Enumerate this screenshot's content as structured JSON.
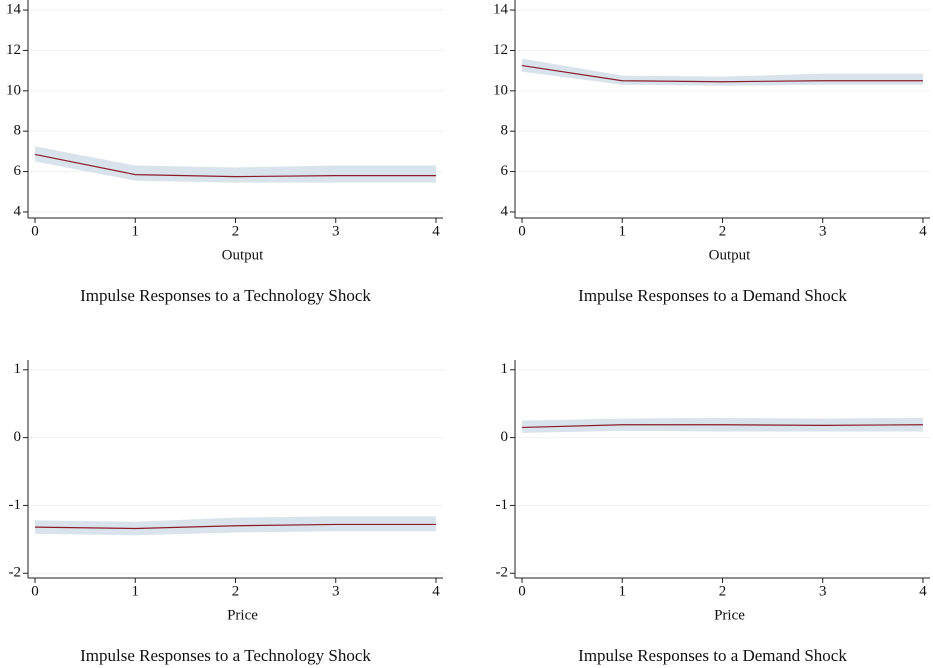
{
  "chart_data": [
    {
      "type": "line",
      "title": "Impulse Responses to a Technology Shock",
      "x_label": "Output",
      "x": [
        0,
        1,
        2,
        3,
        4
      ],
      "xlim": [
        -0.07,
        4.07
      ],
      "xticks": [
        0,
        1,
        2,
        3,
        4
      ],
      "ylim": [
        3.7,
        14.35
      ],
      "yticks": [
        4,
        6,
        8,
        10,
        12,
        14
      ],
      "grid": true,
      "series": [
        {
          "color": "#8c1c2c",
          "band_color": "#d9e3eb",
          "values": [
            6.85,
            5.85,
            5.75,
            5.8,
            5.8
          ],
          "lower": [
            6.5,
            5.55,
            5.45,
            5.45,
            5.45
          ],
          "upper": [
            7.25,
            6.3,
            6.2,
            6.3,
            6.3
          ]
        }
      ]
    },
    {
      "type": "line",
      "title": "Impulse Responses to a Demand Shock",
      "x_label": "Output",
      "x": [
        0,
        1,
        2,
        3,
        4
      ],
      "xlim": [
        -0.07,
        4.07
      ],
      "xticks": [
        0,
        1,
        2,
        3,
        4
      ],
      "ylim": [
        3.7,
        14.35
      ],
      "yticks": [
        4,
        6,
        8,
        10,
        12,
        14
      ],
      "grid": true,
      "series": [
        {
          "color": "#8c1c2c",
          "band_color": "#d9e3eb",
          "values": [
            11.25,
            10.5,
            10.45,
            10.5,
            10.5
          ],
          "lower": [
            10.95,
            10.3,
            10.25,
            10.3,
            10.3
          ],
          "upper": [
            11.6,
            10.75,
            10.7,
            10.85,
            10.85
          ]
        }
      ]
    },
    {
      "type": "line",
      "title": "Impulse Responses to a Technology Shock",
      "x_label": "Price",
      "x": [
        0,
        1,
        2,
        3,
        4
      ],
      "xlim": [
        -0.07,
        4.07
      ],
      "xticks": [
        0,
        1,
        2,
        3,
        4
      ],
      "ylim": [
        -2.07,
        1.1
      ],
      "yticks": [
        -2,
        -1,
        0,
        1
      ],
      "grid": true,
      "series": [
        {
          "color": "#8c1c2c",
          "band_color": "#d9e3eb",
          "values": [
            -1.32,
            -1.34,
            -1.3,
            -1.28,
            -1.28
          ],
          "lower": [
            -1.42,
            -1.44,
            -1.4,
            -1.38,
            -1.38
          ],
          "upper": [
            -1.22,
            -1.24,
            -1.18,
            -1.16,
            -1.16
          ]
        }
      ]
    },
    {
      "type": "line",
      "title": "Impulse Responses to a Demand Shock",
      "x_label": "Price",
      "x": [
        0,
        1,
        2,
        3,
        4
      ],
      "xlim": [
        -0.07,
        4.07
      ],
      "xticks": [
        0,
        1,
        2,
        3,
        4
      ],
      "ylim": [
        -2.07,
        1.1
      ],
      "yticks": [
        -2,
        -1,
        0,
        1
      ],
      "grid": true,
      "series": [
        {
          "color": "#8c1c2c",
          "band_color": "#d9e3eb",
          "values": [
            0.15,
            0.19,
            0.19,
            0.18,
            0.19
          ],
          "lower": [
            0.07,
            0.1,
            0.09,
            0.09,
            0.09
          ],
          "upper": [
            0.25,
            0.28,
            0.29,
            0.28,
            0.29
          ]
        }
      ]
    }
  ]
}
